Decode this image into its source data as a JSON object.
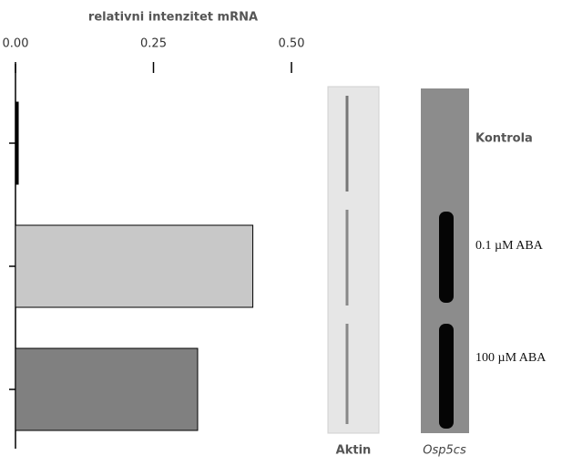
{
  "chart_data": {
    "type": "bar",
    "orientation": "horizontal",
    "title": "relativni intenzitet mRNA",
    "categories": [
      "Kontrola",
      "0.1 µM ABA",
      "100 µM ABA"
    ],
    "values": [
      0.005,
      0.43,
      0.33
    ],
    "colors": [
      "#000000",
      "#c8c8c8",
      "#808080"
    ],
    "xlim": [
      0,
      0.5
    ],
    "xticks": [
      {
        "value": 0,
        "label": "0.00"
      },
      {
        "value": 0.25,
        "label": "0.25"
      },
      {
        "value": 0.5,
        "label": "0.50"
      }
    ],
    "lane_labels": [
      "Aktin",
      "Osp5cs"
    ]
  }
}
